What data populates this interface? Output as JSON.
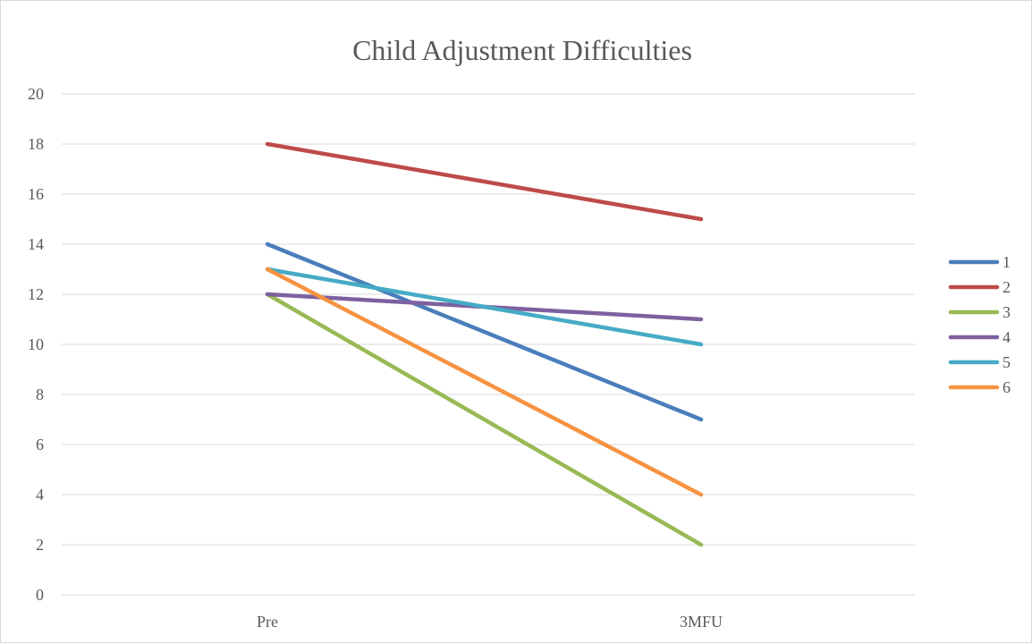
{
  "chart_data": {
    "type": "line",
    "title": "Child Adjustment Difficulties",
    "xlabel": "",
    "ylabel": "",
    "categories": [
      "Pre",
      "3MFU"
    ],
    "ylim": [
      0,
      20
    ],
    "yticks": [
      0,
      2,
      4,
      6,
      8,
      10,
      12,
      14,
      16,
      18,
      20
    ],
    "grid": true,
    "legend_position": "right",
    "series": [
      {
        "name": "1",
        "values": [
          14,
          7
        ],
        "color": "#4a7ebb"
      },
      {
        "name": "2",
        "values": [
          18,
          15
        ],
        "color": "#be4b48"
      },
      {
        "name": "3",
        "values": [
          12,
          2
        ],
        "color": "#98b954"
      },
      {
        "name": "4",
        "values": [
          12,
          11
        ],
        "color": "#7d60a0"
      },
      {
        "name": "5",
        "values": [
          13,
          10
        ],
        "color": "#46aac5"
      },
      {
        "name": "6",
        "values": [
          13,
          4
        ],
        "color": "#f69240"
      }
    ]
  }
}
